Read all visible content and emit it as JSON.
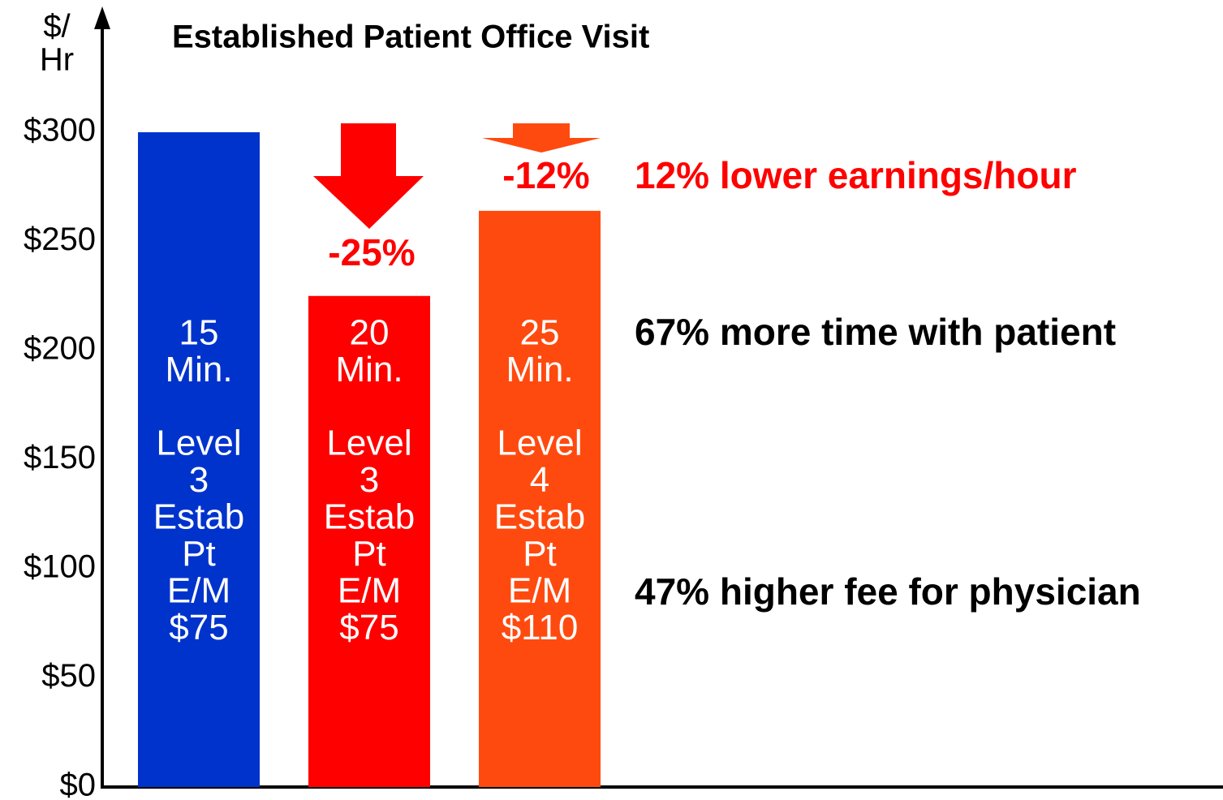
{
  "chart_data": {
    "type": "bar",
    "title": "Established Patient Office Visit",
    "y_label": [
      "$/",
      "Hr"
    ],
    "categories": [
      [
        [
          "15",
          "Min."
        ],
        [
          "Level",
          "3",
          "Estab",
          "Pt",
          "E/M",
          "$75"
        ]
      ],
      [
        [
          "20",
          "Min."
        ],
        [
          "Level",
          "3",
          "Estab",
          "Pt",
          "E/M",
          "$75"
        ]
      ],
      [
        [
          "25",
          "Min."
        ],
        [
          "Level",
          "4",
          "Estab",
          "Pt",
          "E/M",
          "$110"
        ]
      ]
    ],
    "values": [
      300,
      225,
      264
    ],
    "colors": [
      "#0033cc",
      "#ff0000",
      "#ff4a0f"
    ],
    "ylim": [
      0,
      300
    ],
    "yticks": [
      {
        "value": 0,
        "label": "$0"
      },
      {
        "value": 50,
        "label": "$50"
      },
      {
        "value": 100,
        "label": "$100"
      },
      {
        "value": 150,
        "label": "$150"
      },
      {
        "value": 200,
        "label": "$200"
      },
      {
        "value": 250,
        "label": "$250"
      },
      {
        "value": 300,
        "label": "$300"
      }
    ],
    "change_labels": [
      "-25%",
      "-12%"
    ],
    "change_color": "#ff0000",
    "annotations": [
      {
        "text": "12% lower earnings/hour",
        "color": "#ff0000"
      },
      {
        "text": "67% more time with patient",
        "color": "#000000"
      },
      {
        "text": "47% higher fee for physician",
        "color": "#000000"
      }
    ]
  }
}
